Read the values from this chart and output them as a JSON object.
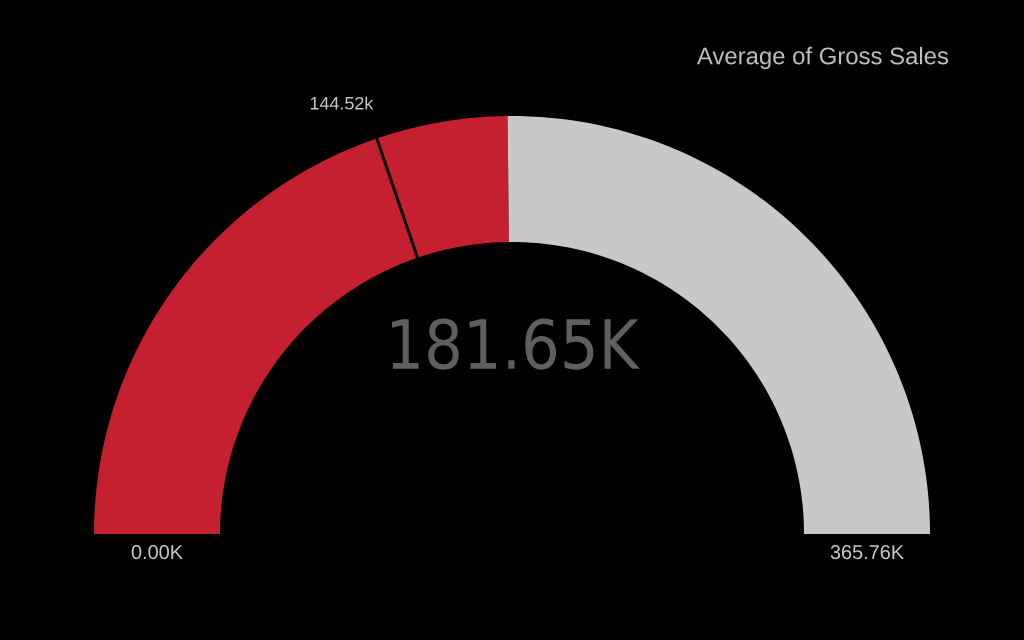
{
  "chart_data": {
    "type": "donut",
    "title": "Average of Gross Sales",
    "categories": [
      null,
      null,
      null
    ],
    "values": [
      144.52,
      37.13,
      184.11
    ],
    "colors": [
      "#c4202f",
      "#c4202f",
      "#c8c8c8"
    ],
    "value_labels": [
      "144.52k",
      null,
      null
    ],
    "annotations": [
      "181.65K",
      "0.00K",
      "365.76K"
    ]
  }
}
